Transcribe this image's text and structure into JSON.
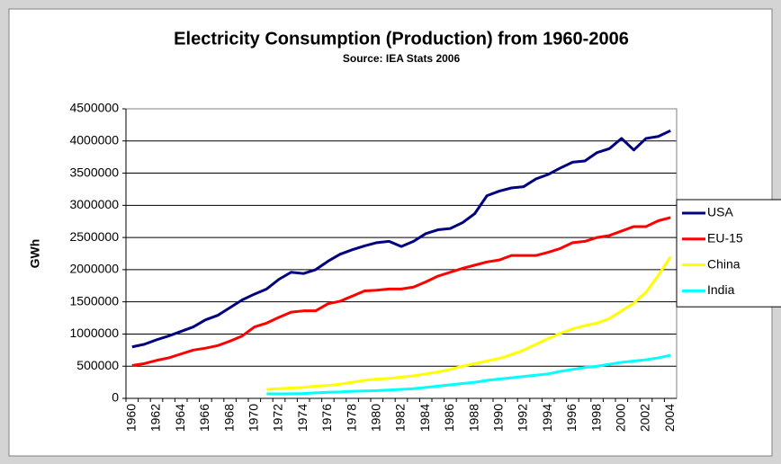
{
  "chart_data": {
    "type": "line",
    "title": "Electricity Consumption (Production) from 1960-2006",
    "subtitle": "Source: IEA Stats 2006",
    "y_label": "GWh",
    "categories": [
      "1960",
      null,
      "1962",
      null,
      "1964",
      null,
      "1966",
      null,
      "1968",
      null,
      "1970",
      null,
      "1972",
      null,
      "1974",
      null,
      "1976",
      null,
      "1978",
      null,
      "1980",
      null,
      "1982",
      null,
      "1984",
      null,
      "1986",
      null,
      "1988",
      null,
      "1990",
      null,
      "1992",
      null,
      "1994",
      null,
      "1996",
      null,
      "1998",
      null,
      "2000",
      null,
      "2002",
      null,
      "2004"
    ],
    "series": [
      {
        "name": "USA",
        "color": "#000080",
        "values": [
          800000,
          840000,
          910000,
          970000,
          1040000,
          1110000,
          1220000,
          1290000,
          1410000,
          1530000,
          1620000,
          1700000,
          1850000,
          1960000,
          1940000,
          2000000,
          2130000,
          2240000,
          2310000,
          2370000,
          2420000,
          2440000,
          2360000,
          2440000,
          2560000,
          2620000,
          2640000,
          2730000,
          2870000,
          3150000,
          3220000,
          3270000,
          3290000,
          3410000,
          3480000,
          3580000,
          3670000,
          3690000,
          3820000,
          3880000,
          4040000,
          3860000,
          4040000,
          4070000,
          4160000
        ]
      },
      {
        "name": "EU-15",
        "color": "#ff0000",
        "values": [
          510000,
          540000,
          590000,
          630000,
          690000,
          750000,
          780000,
          820000,
          890000,
          970000,
          1110000,
          1170000,
          1260000,
          1340000,
          1360000,
          1360000,
          1470000,
          1510000,
          1590000,
          1670000,
          1680000,
          1700000,
          1700000,
          1730000,
          1810000,
          1900000,
          1960000,
          2020000,
          2070000,
          2120000,
          2150000,
          2220000,
          2220000,
          2220000,
          2270000,
          2330000,
          2420000,
          2440000,
          2500000,
          2530000,
          2600000,
          2670000,
          2670000,
          2760000,
          2810000
        ]
      },
      {
        "name": "China",
        "color": "#ffff00",
        "values": [
          null,
          null,
          null,
          null,
          null,
          null,
          null,
          null,
          null,
          null,
          null,
          140000,
          150000,
          160000,
          170000,
          190000,
          200000,
          220000,
          250000,
          280000,
          300000,
          310000,
          330000,
          350000,
          380000,
          410000,
          450000,
          500000,
          540000,
          580000,
          620000,
          680000,
          750000,
          840000,
          930000,
          1010000,
          1080000,
          1130000,
          1170000,
          1240000,
          1360000,
          1480000,
          1650000,
          1910000,
          2200000
        ]
      },
      {
        "name": "India",
        "color": "#00ffff",
        "values": [
          null,
          null,
          null,
          null,
          null,
          null,
          null,
          null,
          null,
          null,
          null,
          70000,
          70000,
          72000,
          75000,
          85000,
          95000,
          100000,
          110000,
          115000,
          120000,
          130000,
          140000,
          150000,
          170000,
          190000,
          210000,
          230000,
          250000,
          280000,
          300000,
          320000,
          340000,
          360000,
          380000,
          420000,
          450000,
          480000,
          500000,
          530000,
          560000,
          580000,
          600000,
          630000,
          670000
        ]
      }
    ],
    "ylim": [
      0,
      4500000
    ],
    "yticks": [
      0,
      500000,
      1000000,
      1500000,
      2000000,
      2500000,
      3000000,
      3500000,
      4000000,
      4500000
    ],
    "grid": true,
    "legend": "right"
  }
}
